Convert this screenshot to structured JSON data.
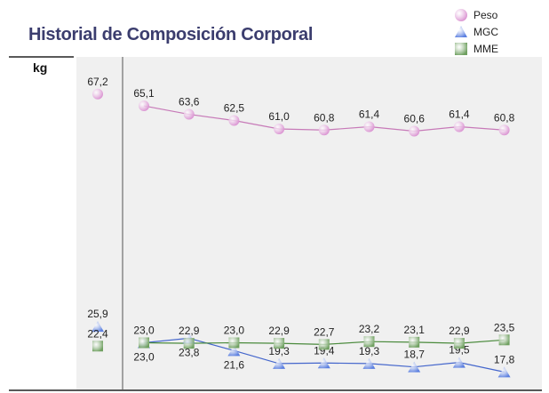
{
  "chart_data": {
    "type": "line",
    "title": "Historial de Composición Corporal",
    "ylabel": "kg",
    "ylim": [
      14.7,
      73.8
    ],
    "grid": false,
    "legend_position": "top-right",
    "x": [
      1,
      2,
      3,
      4,
      5,
      6,
      7,
      8,
      9,
      10
    ],
    "series": [
      {
        "name": "Peso",
        "marker": "circle",
        "color": "#d98fd0",
        "line_color": "#c77ab8",
        "values": [
          67.2,
          65.1,
          63.6,
          62.5,
          61.0,
          60.8,
          61.4,
          60.6,
          61.4,
          60.8
        ],
        "labels": [
          "67,2",
          "65,1",
          "63,6",
          "62,5",
          "61,0",
          "60,8",
          "61,4",
          "60,6",
          "61,4",
          "60,8"
        ]
      },
      {
        "name": "MGC",
        "marker": "triangle",
        "color": "#5b7fe0",
        "line_color": "#4466cc",
        "values": [
          25.9,
          23.0,
          23.8,
          21.6,
          19.3,
          19.4,
          19.3,
          18.7,
          19.5,
          17.8
        ],
        "labels": [
          "25,9",
          "23,0",
          "23,8",
          "21,6",
          "19,3",
          "19,4",
          "19,3",
          "18,7",
          "19,5",
          "17,8"
        ]
      },
      {
        "name": "MME",
        "marker": "square",
        "color": "#6fa060",
        "line_color": "#4a8a3c",
        "values": [
          22.4,
          23.0,
          22.9,
          23.0,
          22.9,
          22.7,
          23.2,
          23.1,
          22.9,
          23.5
        ],
        "labels": [
          "22,4",
          "23,0",
          "22,9",
          "23,0",
          "22,9",
          "22,7",
          "23,2",
          "23,1",
          "22,9",
          "23,5"
        ]
      }
    ]
  }
}
